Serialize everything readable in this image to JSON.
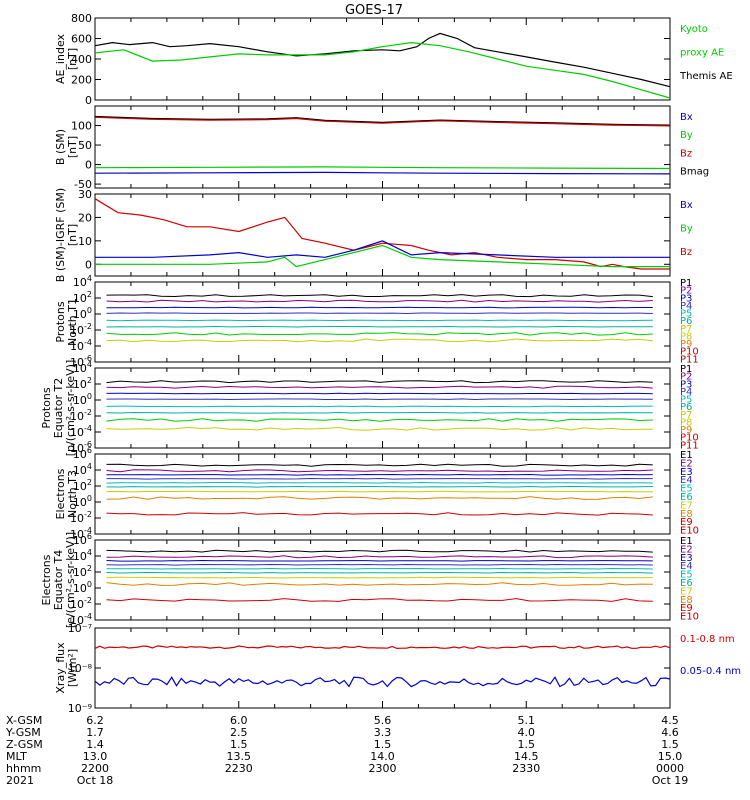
{
  "title": "GOES-17",
  "colors": {
    "black": "#000000",
    "green": "#00cc00",
    "blue": "#0000cc",
    "red": "#cc0000",
    "purple": "#800080",
    "navy": "#3030c0",
    "cyan": "#00bbbb",
    "teal": "#00b0a0",
    "yellow": "#cccc00",
    "orange": "#e08000",
    "darkred": "#b00000"
  },
  "chart_data": [
    {
      "type": "line",
      "id": "ae",
      "ylabel": [
        "AE_index",
        "[nT]"
      ],
      "ylim": [
        0,
        800
      ],
      "yticks": [
        0,
        200,
        400,
        600,
        800
      ],
      "legend": [
        {
          "text": "Kyoto",
          "color": "#00cc00"
        },
        {
          "text": "proxy AE",
          "color": "#00cc00"
        },
        {
          "text": "Themis AE",
          "color": "#000000"
        }
      ],
      "series": [
        {
          "name": "Themis AE",
          "color": "#000000",
          "x": [
            0,
            0.03,
            0.06,
            0.1,
            0.13,
            0.16,
            0.2,
            0.25,
            0.3,
            0.35,
            0.4,
            0.45,
            0.5,
            0.53,
            0.56,
            0.58,
            0.6,
            0.63,
            0.66,
            0.7,
            0.75,
            0.8,
            0.85,
            0.9,
            0.95,
            1.0
          ],
          "y": [
            530,
            560,
            540,
            560,
            520,
            530,
            550,
            520,
            470,
            430,
            450,
            480,
            490,
            480,
            520,
            600,
            650,
            600,
            510,
            470,
            420,
            370,
            320,
            260,
            200,
            130
          ]
        },
        {
          "name": "Kyoto proxy AE",
          "color": "#00cc00",
          "x": [
            0,
            0.05,
            0.1,
            0.15,
            0.2,
            0.25,
            0.3,
            0.35,
            0.4,
            0.45,
            0.5,
            0.55,
            0.6,
            0.65,
            0.7,
            0.75,
            0.8,
            0.85,
            0.9,
            0.95,
            1.0
          ],
          "y": [
            460,
            490,
            380,
            390,
            420,
            450,
            440,
            440,
            440,
            470,
            520,
            560,
            530,
            470,
            400,
            330,
            290,
            250,
            180,
            100,
            20
          ]
        }
      ]
    },
    {
      "type": "line",
      "id": "bsm",
      "ylabel": [
        "B (SM)",
        "[nT]"
      ],
      "ylim": [
        -60,
        150
      ],
      "yticks": [
        -50,
        0,
        50,
        100
      ],
      "legend": [
        {
          "text": "Bx",
          "color": "#0000cc"
        },
        {
          "text": "By",
          "color": "#00cc00"
        },
        {
          "text": "Bz",
          "color": "#cc0000"
        },
        {
          "text": "Bmag",
          "color": "#000000"
        }
      ],
      "series": [
        {
          "name": "Bmag",
          "color": "#000000",
          "x": [
            0,
            0.1,
            0.2,
            0.3,
            0.35,
            0.4,
            0.5,
            0.6,
            0.7,
            0.8,
            0.9,
            1.0
          ],
          "y": [
            123,
            118,
            116,
            117,
            120,
            113,
            108,
            114,
            110,
            107,
            103,
            101
          ]
        },
        {
          "name": "Bz",
          "color": "#cc0000",
          "x": [
            0,
            0.1,
            0.2,
            0.3,
            0.35,
            0.4,
            0.5,
            0.6,
            0.7,
            0.8,
            0.9,
            1.0
          ],
          "y": [
            121,
            116,
            114,
            115,
            118,
            111,
            106,
            112,
            108,
            105,
            101,
            99
          ]
        },
        {
          "name": "By",
          "color": "#00cc00",
          "x": [
            0,
            0.2,
            0.4,
            0.6,
            0.8,
            1.0
          ],
          "y": [
            -8,
            -7,
            -6,
            -8,
            -9,
            -10
          ]
        },
        {
          "name": "Bx",
          "color": "#0000cc",
          "x": [
            0,
            0.2,
            0.4,
            0.6,
            0.8,
            1.0
          ],
          "y": [
            -22,
            -21,
            -20,
            -22,
            -23,
            -24
          ]
        }
      ]
    },
    {
      "type": "line",
      "id": "bsmigrf",
      "ylabel": [
        "B (SM)-IGRF (SM)",
        "[nT]"
      ],
      "ylim": [
        -5,
        30
      ],
      "yticks": [
        0,
        10,
        20,
        30
      ],
      "legend": [
        {
          "text": "Bx",
          "color": "#0000cc"
        },
        {
          "text": "By",
          "color": "#00cc00"
        },
        {
          "text": "Bz",
          "color": "#cc0000"
        }
      ],
      "series": [
        {
          "name": "Bz",
          "color": "#cc0000",
          "x": [
            0,
            0.04,
            0.08,
            0.12,
            0.16,
            0.2,
            0.25,
            0.3,
            0.33,
            0.36,
            0.4,
            0.45,
            0.5,
            0.55,
            0.58,
            0.62,
            0.66,
            0.7,
            0.75,
            0.8,
            0.85,
            0.88,
            0.9,
            0.92,
            0.95,
            1.0
          ],
          "y": [
            28,
            22,
            21,
            19,
            16,
            16,
            14,
            18,
            20,
            11,
            9,
            6,
            9,
            8,
            6,
            4,
            5,
            3,
            2,
            2,
            1,
            -1,
            0,
            -1,
            -2,
            -2
          ]
        },
        {
          "name": "Bx",
          "color": "#0000cc",
          "x": [
            0,
            0.1,
            0.2,
            0.25,
            0.3,
            0.35,
            0.4,
            0.45,
            0.5,
            0.55,
            0.6,
            0.7,
            0.8,
            0.9,
            1.0
          ],
          "y": [
            3,
            3,
            4,
            5,
            3,
            4,
            3,
            6,
            10,
            4,
            5,
            4,
            3,
            3,
            3
          ]
        },
        {
          "name": "By",
          "color": "#00cc00",
          "x": [
            0,
            0.1,
            0.2,
            0.3,
            0.33,
            0.35,
            0.4,
            0.5,
            0.55,
            0.6,
            0.7,
            0.8,
            0.9,
            1.0
          ],
          "y": [
            0,
            0,
            0,
            1,
            3,
            -1,
            2,
            8,
            3,
            2,
            1,
            0,
            -1,
            -1
          ]
        }
      ]
    },
    {
      "type": "line",
      "id": "p_t1",
      "log": true,
      "ylabel": [
        "Protons",
        "North T1"
      ],
      "ylim": [
        -6,
        4
      ],
      "yticks": [
        -6,
        -4,
        -2,
        0,
        2,
        4
      ],
      "legend": [
        {
          "text": "P1",
          "color": "#000000"
        },
        {
          "text": "P2",
          "color": "#800080"
        },
        {
          "text": "P3",
          "color": "#0000cc"
        },
        {
          "text": "P4",
          "color": "#3030c0"
        },
        {
          "text": "P5",
          "color": "#00bbbb"
        },
        {
          "text": "P6",
          "color": "#00b0a0"
        },
        {
          "text": "P7",
          "color": "#cccc00"
        },
        {
          "text": "P8",
          "color": "#cccc00"
        },
        {
          "text": "P9",
          "color": "#e08000"
        },
        {
          "text": "P10",
          "color": "#cc0000"
        },
        {
          "text": "P11",
          "color": "#b00000"
        }
      ],
      "levels": [
        2.3,
        1.6,
        0.8,
        0.1,
        -0.8,
        -1.6,
        -2.5,
        -3.3
      ],
      "level_colors": [
        "#000000",
        "#800080",
        "#0000cc",
        "#3030c0",
        "#00bbbb",
        "#00b0a0",
        "#00cc00",
        "#cccc00"
      ]
    },
    {
      "type": "line",
      "id": "p_t2",
      "log": true,
      "ylabel": [
        "Protons",
        "Equator T2",
        "[p/(cm²-s-sr-keV)]"
      ],
      "ylim": [
        -6,
        4
      ],
      "yticks": [
        -6,
        -4,
        -2,
        0,
        2,
        4
      ],
      "legend": [
        {
          "text": "P1",
          "color": "#000000"
        },
        {
          "text": "P2",
          "color": "#800080"
        },
        {
          "text": "P3",
          "color": "#0000cc"
        },
        {
          "text": "P4",
          "color": "#3030c0"
        },
        {
          "text": "P5",
          "color": "#00bbbb"
        },
        {
          "text": "P6",
          "color": "#00b0a0"
        },
        {
          "text": "P7",
          "color": "#cccc00"
        },
        {
          "text": "P8",
          "color": "#cccc00"
        },
        {
          "text": "P9",
          "color": "#e08000"
        },
        {
          "text": "P10",
          "color": "#cc0000"
        },
        {
          "text": "P11",
          "color": "#b00000"
        }
      ],
      "levels": [
        2.3,
        1.6,
        0.8,
        0.1,
        -0.8,
        -1.6,
        -2.5,
        -3.6
      ],
      "level_colors": [
        "#000000",
        "#800080",
        "#0000cc",
        "#3030c0",
        "#00bbbb",
        "#00b0a0",
        "#00cc00",
        "#cccc00"
      ]
    },
    {
      "type": "line",
      "id": "e_t3",
      "log": true,
      "ylabel": [
        "Electrons",
        "North T3"
      ],
      "ylim": [
        -4,
        6
      ],
      "yticks": [
        -4,
        -2,
        0,
        2,
        4,
        6
      ],
      "legend": [
        {
          "text": "E1",
          "color": "#000000"
        },
        {
          "text": "E2",
          "color": "#800080"
        },
        {
          "text": "E3",
          "color": "#0000cc"
        },
        {
          "text": "E4",
          "color": "#3030c0"
        },
        {
          "text": "E5",
          "color": "#00bbbb"
        },
        {
          "text": "E6",
          "color": "#00b0a0"
        },
        {
          "text": "E7",
          "color": "#cccc00"
        },
        {
          "text": "E8",
          "color": "#e08000"
        },
        {
          "text": "E9",
          "color": "#cc0000"
        },
        {
          "text": "E10",
          "color": "#b00000"
        }
      ],
      "levels": [
        4.6,
        3.9,
        3.4,
        2.9,
        2.4,
        1.9,
        1.3,
        0.5,
        -1.5
      ],
      "level_colors": [
        "#000000",
        "#800080",
        "#0000cc",
        "#3030c0",
        "#00bbbb",
        "#00b0a0",
        "#cccc00",
        "#e08000",
        "#cc0000"
      ]
    },
    {
      "type": "line",
      "id": "e_t4",
      "log": true,
      "ylabel": [
        "Electrons",
        "Equator T4",
        "[e/(cm²-s-sr-keV)]"
      ],
      "ylim": [
        -4,
        6
      ],
      "yticks": [
        -4,
        -2,
        0,
        2,
        4,
        6
      ],
      "legend": [
        {
          "text": "E1",
          "color": "#000000"
        },
        {
          "text": "E2",
          "color": "#800080"
        },
        {
          "text": "E3",
          "color": "#0000cc"
        },
        {
          "text": "E4",
          "color": "#3030c0"
        },
        {
          "text": "E5",
          "color": "#00bbbb"
        },
        {
          "text": "E6",
          "color": "#00b0a0"
        },
        {
          "text": "E7",
          "color": "#cccc00"
        },
        {
          "text": "E8",
          "color": "#e08000"
        },
        {
          "text": "E9",
          "color": "#cc0000"
        },
        {
          "text": "E10",
          "color": "#b00000"
        }
      ],
      "levels": [
        4.6,
        3.9,
        3.4,
        2.9,
        2.4,
        1.9,
        1.3,
        0.5,
        -1.5
      ],
      "level_colors": [
        "#000000",
        "#800080",
        "#0000cc",
        "#3030c0",
        "#00bbbb",
        "#00b0a0",
        "#cccc00",
        "#e08000",
        "#cc0000"
      ]
    },
    {
      "type": "line",
      "id": "xray",
      "log": true,
      "ylabel": [
        "Xray_flux",
        "[W/m²]"
      ],
      "ylim": [
        -9,
        -7
      ],
      "yticklabels": [
        "10⁻⁹",
        "10⁻⁸",
        "10⁻⁷"
      ],
      "yticks": [
        -9,
        -8,
        -7
      ],
      "legend": [
        {
          "text": "0.1-0.8 nm",
          "color": "#cc0000"
        },
        {
          "text": "0.05-0.4 nm",
          "color": "#0000cc"
        }
      ],
      "series": [
        {
          "name": "0.1-0.8 nm",
          "color": "#cc0000",
          "x": [
            0,
            1.0
          ],
          "y": [
            -7.48,
            -7.48
          ],
          "noise": 0.03
        },
        {
          "name": "0.05-0.4 nm",
          "color": "#0000cc",
          "x": [
            0,
            1.0
          ],
          "y": [
            -8.35,
            -8.35
          ],
          "noise": 0.12
        }
      ]
    }
  ],
  "x_axis": {
    "row_labels": [
      "X-GSM",
      "Y-GSM",
      "Z-GSM",
      "MLT",
      "hhmm",
      "2021"
    ],
    "columns": [
      {
        "values": [
          "6.2",
          "1.7",
          "1.4",
          "13.0",
          "2200",
          "Oct 18"
        ]
      },
      {
        "values": [
          "6.0",
          "2.5",
          "1.5",
          "13.5",
          "2230",
          ""
        ]
      },
      {
        "values": [
          "5.6",
          "3.3",
          "1.5",
          "14.0",
          "2300",
          ""
        ]
      },
      {
        "values": [
          "5.1",
          "4.0",
          "1.5",
          "14.5",
          "2330",
          ""
        ]
      },
      {
        "values": [
          "4.5",
          "4.6",
          "1.5",
          "15.0",
          "0000",
          "Oct 19"
        ]
      }
    ]
  }
}
